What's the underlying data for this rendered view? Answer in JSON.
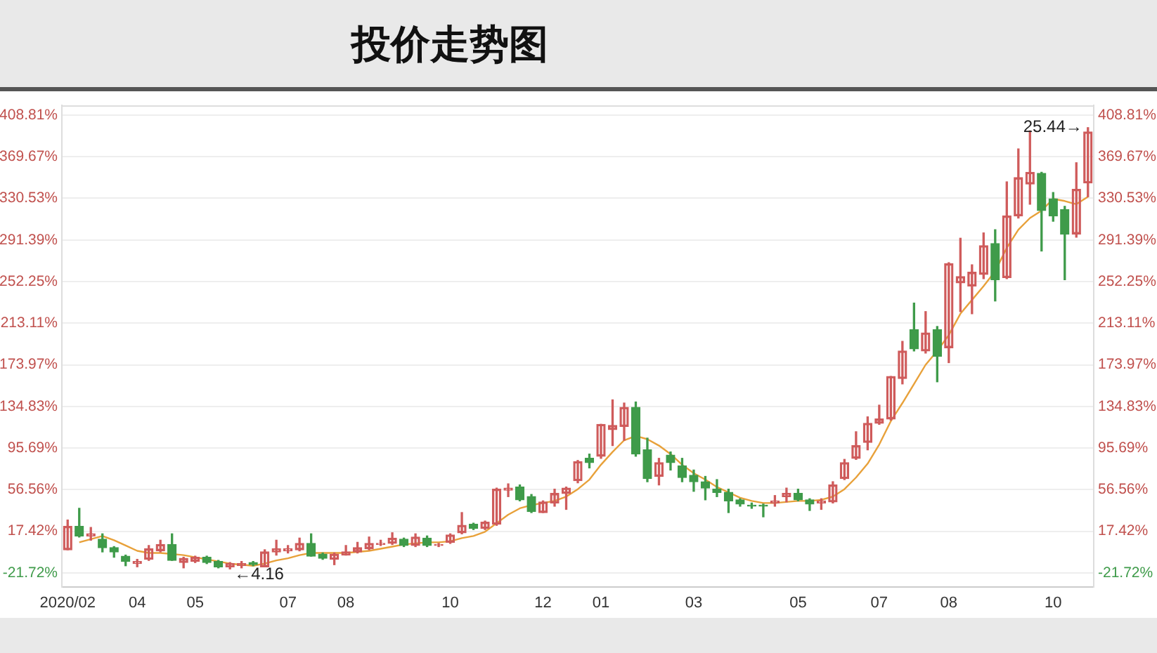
{
  "chart_data": {
    "type": "candlestick",
    "title": "投价走势图",
    "categories": [
      "2020/02",
      null,
      null,
      null,
      null,
      null,
      "04",
      null,
      null,
      null,
      null,
      "05",
      null,
      null,
      null,
      null,
      null,
      null,
      null,
      "07",
      null,
      null,
      null,
      null,
      "08",
      null,
      null,
      null,
      null,
      null,
      null,
      null,
      null,
      "10",
      null,
      null,
      null,
      null,
      null,
      null,
      null,
      "12",
      null,
      null,
      null,
      null,
      "01",
      null,
      null,
      null,
      null,
      null,
      null,
      null,
      "03",
      null,
      null,
      null,
      null,
      null,
      null,
      null,
      null,
      "05",
      null,
      null,
      null,
      null,
      null,
      null,
      "07",
      null,
      null,
      null,
      null,
      null,
      "08",
      null,
      null,
      null,
      null,
      null,
      null,
      null,
      null,
      "10",
      null,
      null,
      null
    ],
    "ylim": [
      -35,
      418
    ],
    "yticks": [
      {
        "value": -21.72,
        "label": "-21.72%"
      },
      {
        "value": 17.42,
        "label": "17.42%"
      },
      {
        "value": 56.56,
        "label": "56.56%"
      },
      {
        "value": 95.69,
        "label": "95.69%"
      },
      {
        "value": 134.83,
        "label": "134.83%"
      },
      {
        "value": 173.97,
        "label": "173.97%"
      },
      {
        "value": 213.11,
        "label": "213.11%"
      },
      {
        "value": 252.25,
        "label": "252.25%"
      },
      {
        "value": 291.39,
        "label": "291.39%"
      },
      {
        "value": 330.53,
        "label": "330.53%"
      },
      {
        "value": 369.67,
        "label": "369.67%"
      },
      {
        "value": 408.81,
        "label": "408.81%"
      }
    ],
    "y2lim": [
      -35,
      418
    ],
    "y2ticks": [
      {
        "value": -21.72,
        "label": "-21.72%"
      },
      {
        "value": 17.42,
        "label": "17.42%"
      },
      {
        "value": 56.56,
        "label": "56.56%"
      },
      {
        "value": 95.69,
        "label": "95.69%"
      },
      {
        "value": 134.83,
        "label": "134.83%"
      },
      {
        "value": 173.97,
        "label": "173.97%"
      },
      {
        "value": 213.11,
        "label": "213.11%"
      },
      {
        "value": 252.25,
        "label": "252.25%"
      },
      {
        "value": 291.39,
        "label": "291.39%"
      },
      {
        "value": 330.53,
        "label": "330.53%"
      },
      {
        "value": 369.67,
        "label": "369.67%"
      },
      {
        "value": 408.81,
        "label": "408.81%"
      }
    ],
    "grid": "y",
    "series": [
      {
        "ohlc": [
          [
            0,
            28,
            0,
            22
          ],
          [
            22,
            39,
            12,
            13
          ],
          [
            13,
            21,
            9,
            15
          ],
          [
            10,
            15,
            -2,
            2
          ],
          [
            2,
            3,
            -7,
            -2
          ],
          [
            -6,
            -5,
            -15,
            -11
          ],
          [
            -13,
            -9,
            -16,
            -11
          ],
          [
            -9,
            4,
            -10,
            1
          ],
          [
            -1,
            9,
            -2,
            5
          ],
          [
            5,
            15,
            -10,
            -10
          ],
          [
            -12,
            -7,
            -17,
            -8
          ],
          [
            -11,
            -6,
            -12,
            -7
          ],
          [
            -7,
            -6,
            -13,
            -12
          ],
          [
            -11,
            -10,
            -17,
            -16
          ],
          [
            -16,
            -12,
            -18,
            -13
          ],
          [
            -15,
            -11,
            -17,
            -13
          ],
          [
            -12,
            -11,
            -15,
            -14
          ],
          [
            -16,
            0,
            -16,
            -2
          ],
          [
            -2,
            9,
            -5,
            1
          ],
          [
            -1,
            4,
            -3,
            1
          ],
          [
            0,
            11,
            -1,
            6
          ],
          [
            6,
            15,
            -6,
            -6
          ],
          [
            -4,
            -3,
            -9,
            -8
          ],
          [
            -9,
            -3,
            -14,
            -4
          ],
          [
            -5,
            4,
            -5,
            -2
          ],
          [
            -2,
            7,
            -3,
            2
          ],
          [
            1,
            12,
            0,
            6
          ],
          [
            5,
            9,
            4,
            6
          ],
          [
            6,
            16,
            5,
            11
          ],
          [
            10,
            11,
            3,
            4
          ],
          [
            4,
            15,
            3,
            12
          ],
          [
            11,
            13,
            3,
            4
          ],
          [
            4,
            6,
            3,
            5
          ],
          [
            7,
            15,
            6,
            14
          ],
          [
            16,
            35,
            15,
            23
          ],
          [
            24,
            25,
            19,
            20
          ],
          [
            20,
            27,
            19,
            26
          ],
          [
            24,
            58,
            23,
            57
          ],
          [
            56,
            62,
            50,
            58
          ],
          [
            59,
            61,
            46,
            47
          ],
          [
            50,
            52,
            35,
            36
          ],
          [
            35,
            46,
            35,
            45
          ],
          [
            44,
            57,
            41,
            53
          ],
          [
            53,
            59,
            38,
            58
          ],
          [
            65,
            84,
            63,
            83
          ],
          [
            86,
            90,
            77,
            82
          ],
          [
            88,
            118,
            86,
            118
          ],
          [
            113,
            141,
            98,
            117
          ],
          [
            116,
            138,
            103,
            134
          ],
          [
            134,
            139,
            88,
            90
          ],
          [
            94,
            105,
            64,
            67
          ],
          [
            69,
            86,
            61,
            82
          ],
          [
            89,
            92,
            75,
            82
          ],
          [
            79,
            86,
            64,
            68
          ],
          [
            70,
            75,
            55,
            64
          ],
          [
            64,
            69,
            47,
            58
          ],
          [
            57,
            66,
            50,
            54
          ],
          [
            54,
            57,
            35,
            46
          ],
          [
            47,
            48,
            41,
            43
          ],
          [
            42,
            44,
            39,
            41
          ],
          [
            42,
            43,
            31,
            41
          ],
          [
            44,
            51,
            41,
            46
          ],
          [
            50,
            58,
            45,
            53
          ],
          [
            53,
            57,
            46,
            47
          ],
          [
            47,
            48,
            37,
            43
          ],
          [
            44,
            48,
            38,
            46
          ],
          [
            45,
            64,
            44,
            61
          ],
          [
            67,
            85,
            66,
            82
          ],
          [
            86,
            111,
            85,
            98
          ],
          [
            101,
            125,
            94,
            119
          ],
          [
            119,
            136,
            118,
            123
          ],
          [
            123,
            163,
            122,
            163
          ],
          [
            161,
            196,
            156,
            187
          ],
          [
            207,
            232,
            187,
            189
          ],
          [
            187,
            224,
            185,
            204
          ],
          [
            207,
            210,
            158,
            182
          ],
          [
            190,
            270,
            176,
            269
          ],
          [
            251,
            293,
            224,
            257
          ],
          [
            248,
            268,
            222,
            261
          ],
          [
            259,
            298,
            255,
            286
          ],
          [
            288,
            301,
            234,
            254
          ],
          [
            256,
            346,
            255,
            314
          ],
          [
            314,
            377,
            312,
            350
          ],
          [
            344,
            394,
            325,
            355
          ],
          [
            354,
            355,
            281,
            319
          ],
          [
            330,
            336,
            309,
            314
          ],
          [
            320,
            323,
            254,
            297
          ],
          [
            297,
            364,
            294,
            339
          ],
          [
            345,
            397,
            332,
            393
          ]
        ],
        "colors": [
          "#cf5b5b",
          "#3f9b4a",
          "#cf5b5b",
          "#3f9b4a",
          "#3f9b4a",
          "#3f9b4a",
          "#cf5b5b",
          "#cf5b5b",
          "#cf5b5b",
          "#3f9b4a",
          "#cf5b5b",
          "#cf5b5b",
          "#3f9b4a",
          "#3f9b4a",
          "#cf5b5b",
          "#cf5b5b",
          "#3f9b4a",
          "#cf5b5b",
          "#cf5b5b",
          "#cf5b5b",
          "#cf5b5b",
          "#3f9b4a",
          "#3f9b4a",
          "#cf5b5b",
          "#cf5b5b",
          "#cf5b5b",
          "#cf5b5b",
          "#cf5b5b",
          "#cf5b5b",
          "#3f9b4a",
          "#cf5b5b",
          "#3f9b4a",
          "#cf5b5b",
          "#cf5b5b",
          "#cf5b5b",
          "#3f9b4a",
          "#cf5b5b",
          "#cf5b5b",
          "#cf5b5b",
          "#3f9b4a",
          "#3f9b4a",
          "#cf5b5b",
          "#cf5b5b",
          "#cf5b5b",
          "#cf5b5b",
          "#3f9b4a",
          "#cf5b5b",
          "#cf5b5b",
          "#cf5b5b",
          "#3f9b4a",
          "#3f9b4a",
          "#cf5b5b",
          "#3f9b4a",
          "#3f9b4a",
          "#3f9b4a",
          "#3f9b4a",
          "#3f9b4a",
          "#3f9b4a",
          "#3f9b4a",
          "#3f9b4a",
          "#3f9b4a",
          "#cf5b5b",
          "#cf5b5b",
          "#3f9b4a",
          "#3f9b4a",
          "#cf5b5b",
          "#cf5b5b",
          "#cf5b5b",
          "#cf5b5b",
          "#cf5b5b",
          "#cf5b5b",
          "#cf5b5b",
          "#cf5b5b",
          "#3f9b4a",
          "#cf5b5b",
          "#3f9b4a",
          "#cf5b5b",
          "#cf5b5b",
          "#cf5b5b",
          "#cf5b5b",
          "#3f9b4a",
          "#cf5b5b",
          "#cf5b5b",
          "#cf5b5b",
          "#3f9b4a",
          "#3f9b4a",
          "#3f9b4a",
          "#cf5b5b",
          "#cf5b5b"
        ]
      },
      {
        "type": "line",
        "color": "#e8a13a",
        "values": [
          null,
          7,
          10,
          13,
          9,
          4,
          -1,
          -3,
          -3,
          -4,
          -5,
          -7,
          -9,
          -11,
          -13,
          -14,
          -15,
          -13,
          -10,
          -8,
          -5,
          -3,
          -3,
          -3,
          -3,
          -2,
          -1,
          1,
          3,
          5,
          6,
          7,
          7,
          8,
          11,
          13,
          17,
          25,
          33,
          39,
          42,
          44,
          46,
          50,
          57,
          66,
          80,
          92,
          103,
          107,
          104,
          98,
          90,
          80,
          72,
          66,
          59,
          54,
          49,
          46,
          44,
          44,
          45,
          46,
          46,
          47,
          50,
          57,
          68,
          81,
          99,
          121,
          138,
          156,
          174,
          187,
          202,
          222,
          235,
          248,
          262,
          284,
          301,
          312,
          319,
          330,
          328,
          325,
          332
        ]
      }
    ],
    "annotations": [
      "←4.16",
      "25.44→"
    ]
  }
}
